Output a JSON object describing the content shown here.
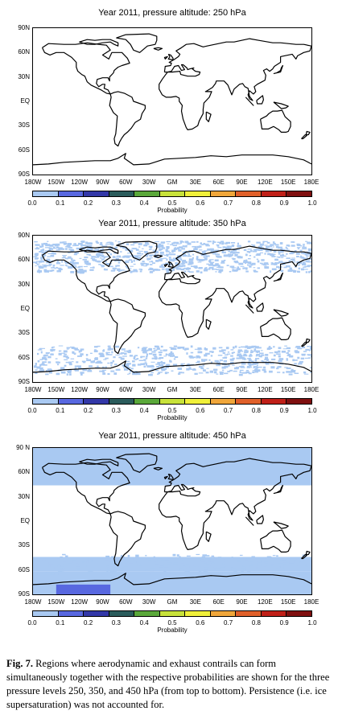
{
  "panels": [
    {
      "title": "Year 2011, pressure altitude: 250 hPa",
      "y_ticks": [
        "90N",
        "60N",
        "30N",
        "EQ",
        "30S",
        "60S",
        "90S"
      ]
    },
    {
      "title": "Year 2011, pressure altitude: 350 hPa",
      "y_ticks": [
        "90N",
        "60N",
        "30N",
        "EQ",
        "30S",
        "60S",
        "90S"
      ]
    },
    {
      "title": "Year 2011, pressure altitude: 450 hPa",
      "y_ticks": [
        "90 N",
        "60N",
        "30N",
        "EQ",
        "30S",
        "60S",
        "90S"
      ]
    }
  ],
  "x_ticks": [
    "180W",
    "150W",
    "120W",
    "90W",
    "60W",
    "30W",
    "GM",
    "30E",
    "60E",
    "90E",
    "120E",
    "150E",
    "180E"
  ],
  "colorbar": {
    "label": "Probability",
    "ticks": [
      "0.0",
      "0.1",
      "0.2",
      "0.3",
      "0.4",
      "0.5",
      "0.6",
      "0.7",
      "0.8",
      "0.9",
      "1.0"
    ],
    "colors": [
      "#a9c9f2",
      "#5868e0",
      "#3338a8",
      "#2b5c5c",
      "#5aa83a",
      "#c8e23a",
      "#f0f03a",
      "#f0a63a",
      "#e0602a",
      "#c02018",
      "#801010"
    ]
  },
  "caption": {
    "fig_label": "Fig. 7.",
    "text": "Regions where aerodynamic and exhaust contrails can form simultaneously together with the respective probabilities are shown for the three pressure levels 250, 350, and 450 hPa (from top to bottom). Persistence (i.e. ice supersaturation) was not accounted for."
  }
}
